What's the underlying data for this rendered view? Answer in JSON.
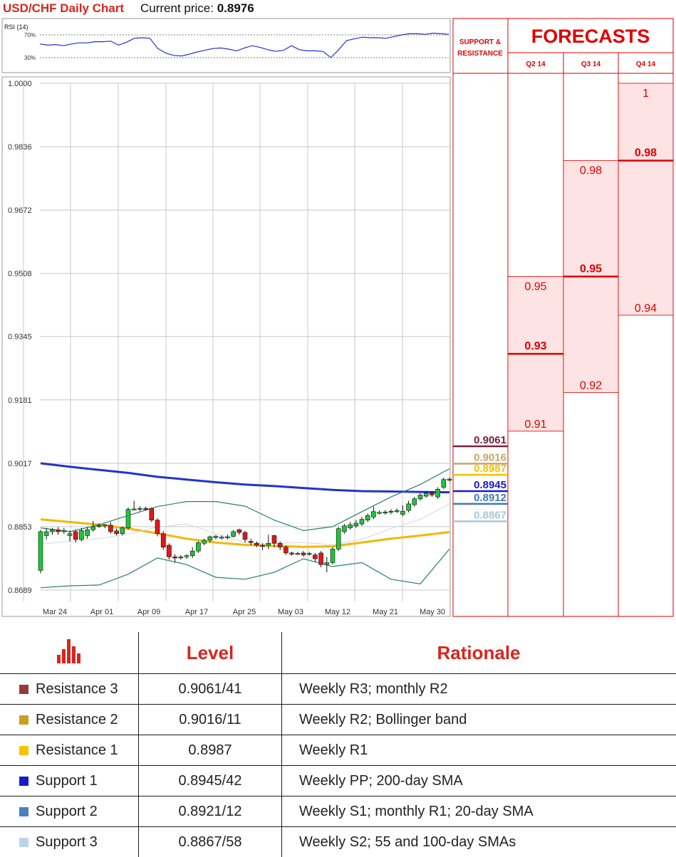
{
  "header": {
    "title": "USD/CHF Daily Chart",
    "price_label": "Current price: ",
    "price_value": "0.8976"
  },
  "rsi": {
    "label": "RSI (14)",
    "levels": [
      "70%",
      "30%"
    ],
    "values": [
      54,
      52,
      53,
      51,
      54,
      56,
      56,
      58,
      58,
      59,
      52,
      57,
      64,
      65,
      64,
      46,
      38,
      34,
      33,
      36,
      40,
      43,
      46,
      47,
      45,
      42,
      47,
      51,
      48,
      44,
      41,
      43,
      51,
      44,
      42,
      42,
      41,
      30,
      44,
      60,
      63,
      66,
      65,
      65,
      64,
      67,
      70,
      72,
      72,
      71,
      73,
      72,
      71
    ]
  },
  "chart_data": {
    "type": "candlestick",
    "ylim": [
      0.8689,
      1.0
    ],
    "y_ticks": [
      "1.0000",
      "0.9836",
      "0.9672",
      "0.9508",
      "0.9345",
      "0.9181",
      "0.9017",
      "0.8853",
      "0.8689"
    ],
    "x_ticks": [
      "Mar 24",
      "Apr 01",
      "Apr 09",
      "Apr 17",
      "Apr 25",
      "May 03",
      "May 12",
      "May 21",
      "May 30"
    ],
    "candles": [
      [
        0.874,
        0.884,
        0.8732,
        0.8845
      ],
      [
        0.883,
        0.884,
        0.882,
        0.885
      ],
      [
        0.884,
        0.8845,
        0.8832,
        0.885
      ],
      [
        0.8845,
        0.884,
        0.8832,
        0.8852
      ],
      [
        0.884,
        0.8843,
        0.8835,
        0.885
      ],
      [
        0.883,
        0.8835,
        0.8815,
        0.8843
      ],
      [
        0.884,
        0.882,
        0.8812,
        0.8845
      ],
      [
        0.882,
        0.8843,
        0.8815,
        0.885
      ],
      [
        0.883,
        0.8845,
        0.8822,
        0.8852
      ],
      [
        0.8845,
        0.8853,
        0.884,
        0.8868
      ],
      [
        0.8855,
        0.8856,
        0.885,
        0.8862
      ],
      [
        0.8855,
        0.8858,
        0.8849,
        0.886
      ],
      [
        0.8857,
        0.884,
        0.8835,
        0.8865
      ],
      [
        0.8842,
        0.8835,
        0.883,
        0.8848
      ],
      [
        0.8835,
        0.885,
        0.883,
        0.8853
      ],
      [
        0.885,
        0.8898,
        0.8845,
        0.8903
      ],
      [
        0.8898,
        0.8899,
        0.8895,
        0.892
      ],
      [
        0.8898,
        0.89,
        0.8893,
        0.8906
      ],
      [
        0.89,
        0.8899,
        0.8895,
        0.8905
      ],
      [
        0.89,
        0.887,
        0.8865,
        0.8903
      ],
      [
        0.887,
        0.8835,
        0.8828,
        0.8875
      ],
      [
        0.8835,
        0.88,
        0.8793,
        0.8842
      ],
      [
        0.8805,
        0.8775,
        0.8768,
        0.881
      ],
      [
        0.8775,
        0.8772,
        0.876,
        0.8782
      ],
      [
        0.8772,
        0.8775,
        0.8768,
        0.878
      ],
      [
        0.8775,
        0.8778,
        0.877,
        0.8782
      ],
      [
        0.8778,
        0.879,
        0.8772,
        0.88
      ],
      [
        0.879,
        0.8812,
        0.8785,
        0.8815
      ],
      [
        0.881,
        0.8818,
        0.8805,
        0.8822
      ],
      [
        0.8818,
        0.8827,
        0.8812,
        0.883
      ],
      [
        0.8825,
        0.8828,
        0.882,
        0.8832
      ],
      [
        0.8826,
        0.8826,
        0.882,
        0.883
      ],
      [
        0.8827,
        0.8827,
        0.882,
        0.8833
      ],
      [
        0.8828,
        0.884,
        0.8825,
        0.8845
      ],
      [
        0.8845,
        0.8838,
        0.8832,
        0.8848
      ],
      [
        0.8838,
        0.882,
        0.8812,
        0.8842
      ],
      [
        0.8815,
        0.8812,
        0.8805,
        0.8822
      ],
      [
        0.881,
        0.8805,
        0.88,
        0.8815
      ],
      [
        0.8805,
        0.8802,
        0.8792,
        0.881
      ],
      [
        0.8805,
        0.881,
        0.8795,
        0.8832
      ],
      [
        0.883,
        0.881,
        0.88,
        0.8832
      ],
      [
        0.881,
        0.88,
        0.8792,
        0.8815
      ],
      [
        0.88,
        0.8785,
        0.878,
        0.8805
      ],
      [
        0.8785,
        0.8782,
        0.8778,
        0.8788
      ],
      [
        0.8783,
        0.8784,
        0.878,
        0.8788
      ],
      [
        0.8785,
        0.878,
        0.8775,
        0.879
      ],
      [
        0.8784,
        0.8784,
        0.8778,
        0.8788
      ],
      [
        0.878,
        0.877,
        0.8762,
        0.8785
      ],
      [
        0.8785,
        0.8755,
        0.8748,
        0.879
      ],
      [
        0.8755,
        0.876,
        0.8735,
        0.8775
      ],
      [
        0.876,
        0.8795,
        0.8755,
        0.88
      ],
      [
        0.8795,
        0.8848,
        0.879,
        0.8852
      ],
      [
        0.884,
        0.8855,
        0.8835,
        0.886
      ],
      [
        0.885,
        0.8858,
        0.8845,
        0.8865
      ],
      [
        0.8855,
        0.8862,
        0.885,
        0.887
      ],
      [
        0.886,
        0.8872,
        0.8855,
        0.8878
      ],
      [
        0.887,
        0.8882,
        0.8865,
        0.8887
      ],
      [
        0.8878,
        0.8892,
        0.8872,
        0.8905
      ],
      [
        0.889,
        0.889,
        0.8885,
        0.8895
      ],
      [
        0.889,
        0.8891,
        0.8884,
        0.8896
      ],
      [
        0.8891,
        0.8893,
        0.8885,
        0.8898
      ],
      [
        0.8893,
        0.8895,
        0.8888,
        0.89
      ],
      [
        0.8885,
        0.8893,
        0.888,
        0.8908
      ],
      [
        0.8895,
        0.8912,
        0.889,
        0.892
      ],
      [
        0.891,
        0.8925,
        0.8905,
        0.893
      ],
      [
        0.8925,
        0.8935,
        0.892,
        0.894
      ],
      [
        0.8932,
        0.894,
        0.8928,
        0.8945
      ],
      [
        0.894,
        0.8935,
        0.893,
        0.8945
      ],
      [
        0.893,
        0.895,
        0.8925,
        0.8955
      ],
      [
        0.8955,
        0.8975,
        0.895,
        0.898
      ],
      [
        0.8975,
        0.8976,
        0.897,
        0.898
      ]
    ],
    "series": [
      {
        "name": "",
        "color": "#2233cc",
        "points": [
          [
            0,
            0.9017
          ],
          [
            5,
            0.9008
          ],
          [
            10,
            0.9
          ],
          [
            15,
            0.8992
          ],
          [
            20,
            0.8982
          ],
          [
            25,
            0.8975
          ],
          [
            30,
            0.8968
          ],
          [
            35,
            0.8962
          ],
          [
            40,
            0.8958
          ],
          [
            45,
            0.8953
          ],
          [
            50,
            0.8948
          ],
          [
            55,
            0.8945
          ],
          [
            60,
            0.8944
          ],
          [
            65,
            0.8943
          ],
          [
            70,
            0.8942
          ]
        ]
      },
      {
        "name": "",
        "color": "#f2b705",
        "points": [
          [
            0,
            0.8872
          ],
          [
            5,
            0.8865
          ],
          [
            10,
            0.8858
          ],
          [
            15,
            0.8848
          ],
          [
            20,
            0.8836
          ],
          [
            25,
            0.8822
          ],
          [
            30,
            0.8812
          ],
          [
            35,
            0.8806
          ],
          [
            40,
            0.8803
          ],
          [
            45,
            0.8801
          ],
          [
            50,
            0.8802
          ],
          [
            55,
            0.8812
          ],
          [
            60,
            0.8822
          ],
          [
            65,
            0.883
          ],
          [
            70,
            0.8839
          ]
        ]
      },
      {
        "name": "",
        "color": "#dddddd",
        "points": [
          [
            0,
            0.8808
          ],
          [
            5,
            0.8815
          ],
          [
            10,
            0.8822
          ],
          [
            15,
            0.8834
          ],
          [
            20,
            0.8852
          ],
          [
            25,
            0.886
          ],
          [
            30,
            0.8835
          ],
          [
            35,
            0.8812
          ],
          [
            40,
            0.881
          ],
          [
            45,
            0.8812
          ],
          [
            50,
            0.8806
          ],
          [
            55,
            0.882
          ],
          [
            60,
            0.8848
          ],
          [
            65,
            0.8872
          ],
          [
            70,
            0.8912
          ]
        ]
      },
      {
        "name": "",
        "color": "#2e7d6e",
        "points": [
          [
            0,
            0.885
          ],
          [
            5,
            0.884
          ],
          [
            10,
            0.8858
          ],
          [
            15,
            0.8882
          ],
          [
            20,
            0.8905
          ],
          [
            25,
            0.8918
          ],
          [
            30,
            0.8918
          ],
          [
            35,
            0.8906
          ],
          [
            40,
            0.887
          ],
          [
            45,
            0.8843
          ],
          [
            50,
            0.8853
          ],
          [
            55,
            0.8892
          ],
          [
            60,
            0.893
          ],
          [
            65,
            0.8962
          ],
          [
            70,
            0.9003
          ]
        ]
      },
      {
        "name": "",
        "color": "#2e7d6e",
        "points": [
          [
            0,
            0.8695
          ],
          [
            5,
            0.87
          ],
          [
            10,
            0.8702
          ],
          [
            15,
            0.873
          ],
          [
            20,
            0.8772
          ],
          [
            25,
            0.8755
          ],
          [
            30,
            0.8722
          ],
          [
            35,
            0.8717
          ],
          [
            40,
            0.8735
          ],
          [
            45,
            0.877
          ],
          [
            50,
            0.875
          ],
          [
            55,
            0.876
          ],
          [
            60,
            0.8717
          ],
          [
            65,
            0.8705
          ],
          [
            70,
            0.8795
          ]
        ]
      }
    ],
    "sr_levels": [
      {
        "name": "Resistance 3",
        "value": 0.9061,
        "label": "0.9061",
        "color": "#7b2040"
      },
      {
        "name": "Resistance 2",
        "value": 0.9016,
        "label": "0.9016",
        "color": "#c8a56a"
      },
      {
        "name": "Resistance 1",
        "value": 0.8987,
        "label": "0.8987",
        "color": "#f2c200"
      },
      {
        "name": "Support 1",
        "value": 0.8945,
        "label": "0.8945",
        "color": "#1a1acc"
      },
      {
        "name": "Support 2",
        "value": 0.8912,
        "label": "0.8912",
        "color": "#3d7ab8"
      },
      {
        "name": "Support 3",
        "value": 0.8867,
        "label": "0.8867",
        "color": "#a8c8da"
      }
    ],
    "forecasts": [
      {
        "quarter": "Q2 14",
        "high": 0.95,
        "mid": 0.93,
        "low": 0.91,
        "high_label": "0.95",
        "mid_label": "0.93",
        "low_label": "0.91"
      },
      {
        "quarter": "Q3 14",
        "high": 0.98,
        "mid": 0.95,
        "low": 0.92,
        "high_label": "0.98",
        "mid_label": "0.95",
        "low_label": "0.92"
      },
      {
        "quarter": "Q4 14",
        "high": 1.0,
        "mid": 0.98,
        "low": 0.94,
        "high_label": "1",
        "mid_label": "0.98",
        "low_label": "0.94"
      }
    ]
  },
  "forecast_panel": {
    "title": "FORECASTS",
    "sr_header": [
      "SUPPORT &",
      "RESISTANCE"
    ],
    "color": "#e00000",
    "band_fill": "#fde3e3"
  },
  "table": {
    "headers": {
      "level": "Level",
      "rationale": "Rationale"
    },
    "rows": [
      {
        "name": "Resistance 3",
        "level": "0.9061/41",
        "rationale": "Weekly R3; monthly R2",
        "color": "#973a3a"
      },
      {
        "name": "Resistance 2",
        "level": "0.9016/11",
        "rationale": "Weekly R2; Bollinger band",
        "color": "#c9a01e"
      },
      {
        "name": "Resistance 1",
        "level": "0.8987",
        "rationale": "Weekly R1",
        "color": "#f5c400"
      },
      {
        "name": "Support 1",
        "level": "0.8945/42",
        "rationale": "Weekly PP; 200-day SMA",
        "color": "#1a1acc"
      },
      {
        "name": "Support 2",
        "level": "0.8921/12",
        "rationale": "Weekly S1; monthly R1; 20-day SMA",
        "color": "#4a80c0"
      },
      {
        "name": "Support 3",
        "level": "0.8867/58",
        "rationale": "Weekly S2; 55 and 100-day SMAs",
        "color": "#bcd4e8"
      }
    ]
  }
}
